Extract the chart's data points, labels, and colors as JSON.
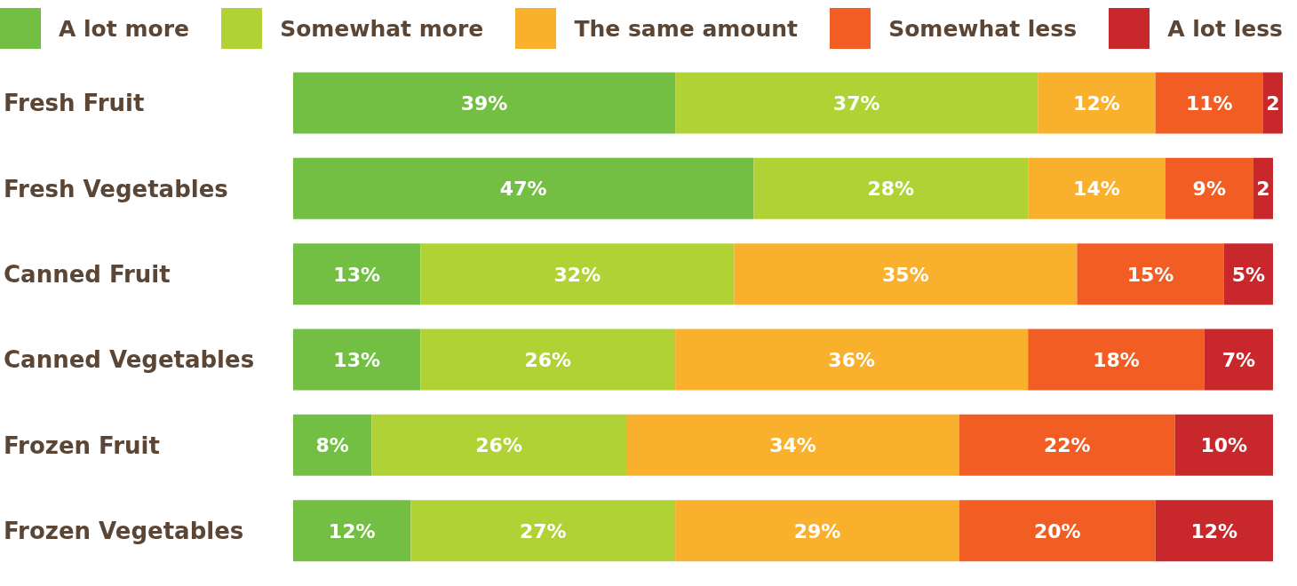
{
  "chart_data": {
    "type": "bar",
    "orientation": "horizontal",
    "stacked": true,
    "legend": "top",
    "categories": [
      "Fresh Fruit",
      "Fresh Vegetables",
      "Canned Fruit",
      "Canned Vegetables",
      "Frozen Fruit",
      "Frozen Vegetables"
    ],
    "series": [
      {
        "name": "A lot more",
        "color": "#72bf44",
        "values": [
          39,
          47,
          13,
          13,
          8,
          12
        ],
        "value_labels": [
          "39%",
          "47%",
          "13%",
          "13%",
          "8%",
          "12%"
        ]
      },
      {
        "name": "Somewhat more",
        "color": "#b0d235",
        "values": [
          37,
          28,
          32,
          26,
          26,
          27
        ],
        "value_labels": [
          "37%",
          "28%",
          "32%",
          "26%",
          "26%",
          "27%"
        ]
      },
      {
        "name": "The same amount",
        "color": "#f9b02c",
        "values": [
          12,
          14,
          35,
          36,
          34,
          29
        ],
        "value_labels": [
          "12%",
          "14%",
          "35%",
          "36%",
          "34%",
          "29%"
        ]
      },
      {
        "name": "Somewhat less",
        "color": "#f15d22",
        "values": [
          11,
          9,
          15,
          18,
          22,
          20
        ],
        "value_labels": [
          "11%",
          "9%",
          "15%",
          "18%",
          "22%",
          "20%"
        ]
      },
      {
        "name": "A lot less",
        "color": "#c8272c",
        "values": [
          2,
          2,
          5,
          7,
          10,
          12
        ],
        "value_labels": [
          "2",
          "2",
          "5%",
          "7%",
          "10%",
          "12%"
        ]
      }
    ]
  }
}
